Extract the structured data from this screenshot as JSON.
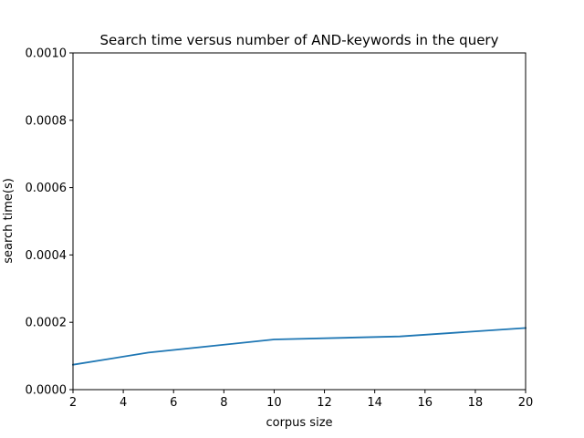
{
  "chart_data": {
    "type": "line",
    "title": "Search time versus number of AND-keywords in the query",
    "xlabel": "corpus size",
    "ylabel": "search time(s)",
    "xlim": [
      2,
      20
    ],
    "ylim": [
      0,
      0.001
    ],
    "xticks": [
      2,
      4,
      6,
      8,
      10,
      12,
      14,
      16,
      18,
      20
    ],
    "xtick_labels": [
      "2",
      "4",
      "6",
      "8",
      "10",
      "12",
      "14",
      "16",
      "18",
      "20"
    ],
    "yticks": [
      0,
      0.0002,
      0.0004,
      0.0006,
      0.0008,
      0.001
    ],
    "ytick_labels": [
      "0.0000",
      "0.0002",
      "0.0004",
      "0.0006",
      "0.0008",
      "0.0010"
    ],
    "grid": false,
    "series": [
      {
        "color": "#1f77b4",
        "x": [
          2,
          5,
          10,
          15,
          20
        ],
        "y": [
          7.4e-05,
          0.00011,
          0.000149,
          0.000158,
          0.000183
        ]
      }
    ]
  }
}
